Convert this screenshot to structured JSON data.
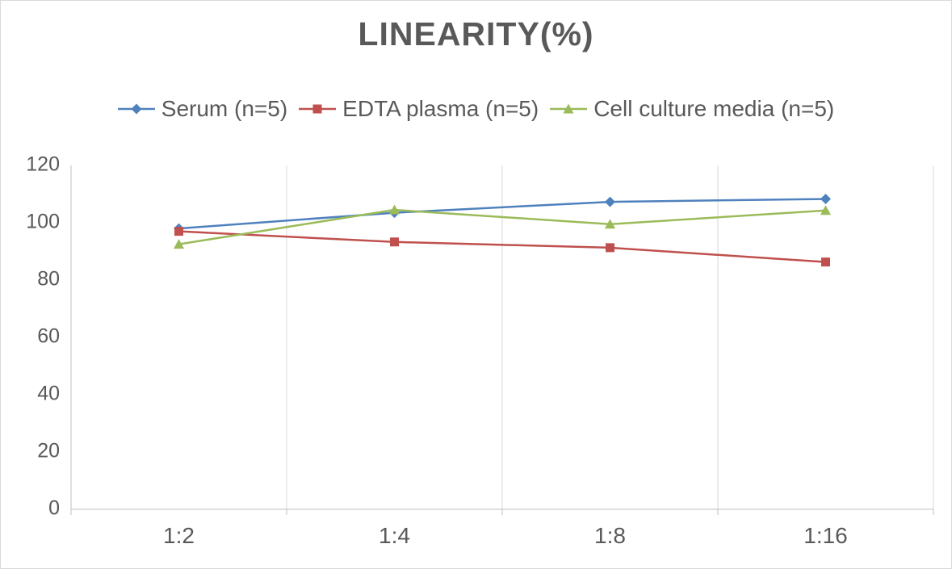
{
  "chart_data": {
    "type": "line",
    "title": "LINEARITY(%)",
    "categories": [
      "1:2",
      "1:4",
      "1:8",
      "1:16"
    ],
    "series": [
      {
        "name": "Serum (n=5)",
        "color": "#4F81BD",
        "marker": "diamond",
        "values": [
          98,
          103.5,
          107.3,
          108.3
        ]
      },
      {
        "name": "EDTA plasma (n=5)",
        "color": "#C0504D",
        "marker": "square",
        "values": [
          97,
          93.3,
          91.3,
          86.3
        ]
      },
      {
        "name": "Cell culture media (n=5)",
        "color": "#9BBB59",
        "marker": "triangle",
        "values": [
          92.5,
          104.5,
          99.5,
          104.3
        ]
      }
    ],
    "ylim": [
      0,
      120
    ],
    "yticks": [
      0,
      20,
      40,
      60,
      80,
      100,
      120
    ],
    "grid": "vertical",
    "legend_position": "top",
    "axis_color": "#bfbfbf",
    "gridline_color": "#d9d9d9",
    "label_color": "#595959"
  }
}
